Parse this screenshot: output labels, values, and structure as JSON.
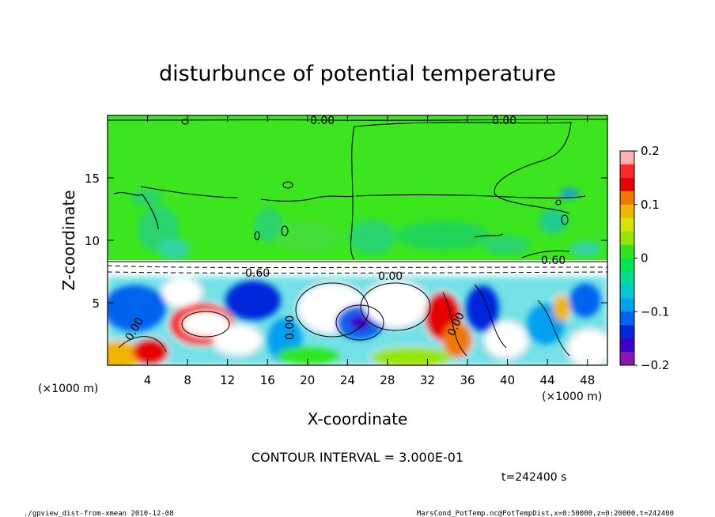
{
  "chart_data": {
    "type": "heatmap",
    "title": "disturbunce of potential temperature",
    "xlabel": "X-coordinate",
    "ylabel": "Z-coordinate",
    "x_unit_left": "(×1000 m)",
    "x_unit_right": "(×1000 m)",
    "xlim": [
      0,
      50
    ],
    "ylim": [
      0,
      20
    ],
    "x_ticks": [
      4,
      8,
      12,
      16,
      20,
      24,
      28,
      32,
      36,
      40,
      44,
      48
    ],
    "y_ticks": [
      5,
      10,
      15
    ],
    "colorbar": {
      "range": [
        -0.2,
        0.2
      ],
      "tick_values": [
        0.2,
        0.1,
        0,
        -0.1,
        -0.2
      ],
      "tick_labels": [
        "0.2",
        "0.1",
        "0",
        "−0.1",
        "−0.2"
      ],
      "colors": [
        "#fcb0b0",
        "#fa2a2a",
        "#e60000",
        "#f07800",
        "#f0b400",
        "#d2e600",
        "#96e600",
        "#32e61e",
        "#00e650",
        "#00dc96",
        "#00c8d2",
        "#00a0f0",
        "#0064f0",
        "#0028dc",
        "#3c00c8",
        "#8c14b4"
      ]
    },
    "contour_labels": [
      "0.00",
      "0.00",
      "0.60",
      "0.60",
      "0.00",
      "0.00",
      "0.00",
      "0.00"
    ],
    "annotation": "CONTOUR INTERVAL = 3.000E-01",
    "time_label": "t=242400 s"
  },
  "footer": {
    "left": "./gpview_dist-from-xmean  2010-12-08",
    "right": "MarsCond_PotTemp.nc@PotTempDist,x=0:50000,z=0:20000,t=242400"
  },
  "colors": {
    "background_field": "#3ce61e",
    "mixed_layer_white": "#ffffff"
  }
}
